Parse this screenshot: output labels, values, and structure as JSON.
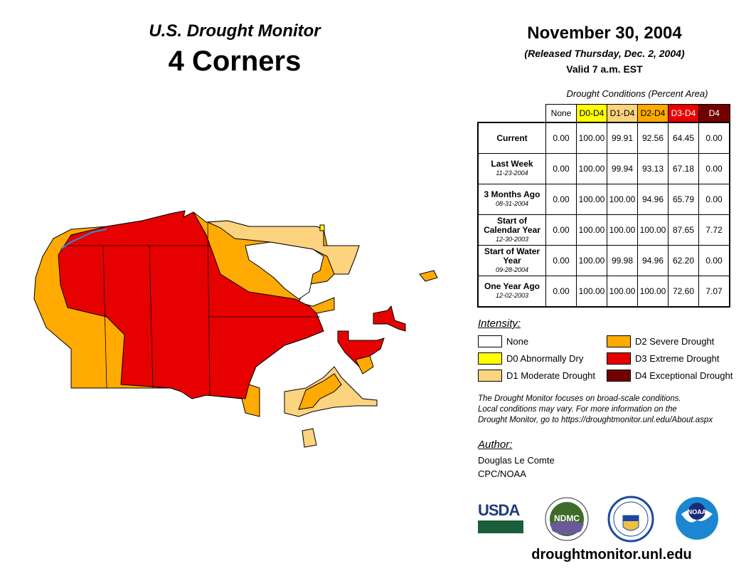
{
  "title": {
    "line1": "U.S. Drought Monitor",
    "line2": "4 Corners"
  },
  "date": {
    "main": "November 30, 2004",
    "released": "(Released Thursday, Dec. 2, 2004)",
    "valid": "Valid 7 a.m. EST"
  },
  "table": {
    "caption": "Drought Conditions (Percent Area)",
    "columns": [
      {
        "label": "None",
        "color": "#ffffff",
        "text": "#000"
      },
      {
        "label": "D0-D4",
        "color": "#ffff00",
        "text": "#000"
      },
      {
        "label": "D1-D4",
        "color": "#fcd37f",
        "text": "#000"
      },
      {
        "label": "D2-D4",
        "color": "#ffaa00",
        "text": "#000"
      },
      {
        "label": "D3-D4",
        "color": "#e60000",
        "text": "#fff"
      },
      {
        "label": "D4",
        "color": "#730000",
        "text": "#fff"
      }
    ],
    "rows": [
      {
        "label": "Current",
        "date": "",
        "values": [
          "0.00",
          "100.00",
          "99.91",
          "92.56",
          "64.45",
          "0.00"
        ]
      },
      {
        "label": "Last Week",
        "date": "11-23-2004",
        "values": [
          "0.00",
          "100.00",
          "99.94",
          "93.13",
          "67.18",
          "0.00"
        ]
      },
      {
        "label": "3 Months Ago",
        "date": "08-31-2004",
        "values": [
          "0.00",
          "100.00",
          "100.00",
          "94.96",
          "65.79",
          "0.00"
        ]
      },
      {
        "label": "Start of Calendar Year",
        "date": "12-30-2003",
        "values": [
          "0.00",
          "100.00",
          "100.00",
          "100.00",
          "87.65",
          "7.72"
        ]
      },
      {
        "label": "Start of Water Year",
        "date": "09-28-2004",
        "values": [
          "0.00",
          "100.00",
          "99.98",
          "94.96",
          "62.20",
          "0.00"
        ]
      },
      {
        "label": "One Year Ago",
        "date": "12-02-2003",
        "values": [
          "0.00",
          "100.00",
          "100.00",
          "100.00",
          "72.60",
          "7.07"
        ]
      }
    ]
  },
  "legend": {
    "title": "Intensity:",
    "items": [
      {
        "label": "None",
        "color": "#ffffff"
      },
      {
        "label": "D0 Abnormally Dry",
        "color": "#ffff00"
      },
      {
        "label": "D1 Moderate Drought",
        "color": "#fcd37f"
      },
      {
        "label": "D2 Severe Drought",
        "color": "#ffaa00"
      },
      {
        "label": "D3 Extreme Drought",
        "color": "#e60000"
      },
      {
        "label": "D4 Exceptional Drought",
        "color": "#730000"
      }
    ]
  },
  "note": [
    "The Drought Monitor focuses on broad-scale conditions.",
    "Local conditions may vary. For more information on the",
    "Drought Monitor, go to https://droughtmonitor.unl.edu/About.aspx"
  ],
  "author": {
    "title": "Author:",
    "name": "Douglas Le Comte",
    "org": "CPC/NOAA"
  },
  "logos": {
    "usda": "USDA",
    "ndmc": "NDMC",
    "noaa": "NOAA"
  },
  "url": "droughtmonitor.unl.edu"
}
